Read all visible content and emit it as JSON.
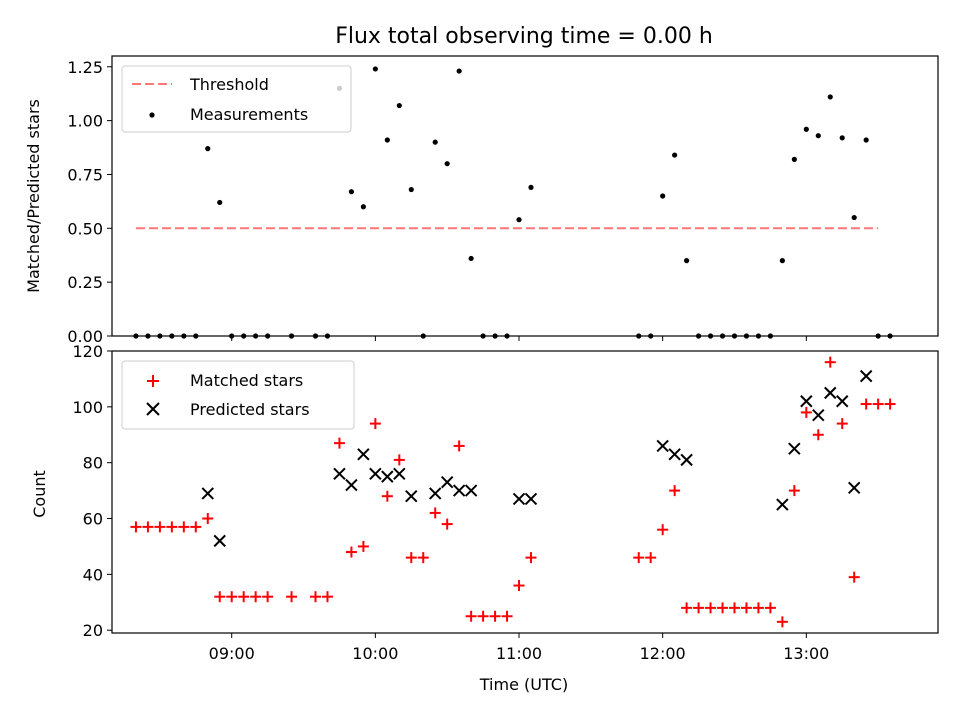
{
  "chart_data": [
    {
      "type": "scatter",
      "title": "Flux total observing time = 0.00 h",
      "xlabel": "",
      "ylabel": "Matched/Predicted stars",
      "ylim": [
        0,
        1.3
      ],
      "xlim": [
        "08:10",
        "13:55"
      ],
      "yticks": [
        "0.00",
        "0.25",
        "0.50",
        "0.75",
        "1.00",
        "1.25"
      ],
      "xticks": [
        "09:00",
        "10:00",
        "11:00",
        "12:00",
        "13:00"
      ],
      "grid": false,
      "legend_position": "top-left",
      "legend": [
        "Threshold",
        "Measurements"
      ],
      "threshold": {
        "name": "Threshold",
        "y": 0.5,
        "x_range": [
          "08:20",
          "13:30"
        ],
        "color": "#ff7777",
        "style": "dashed"
      },
      "series": [
        {
          "name": "Measurements",
          "color": "#000000",
          "marker": "dot",
          "points": [
            [
              "08:20",
              0
            ],
            [
              "08:25",
              0
            ],
            [
              "08:30",
              0
            ],
            [
              "08:35",
              0
            ],
            [
              "08:40",
              0
            ],
            [
              "08:45",
              0
            ],
            [
              "08:50",
              0.87
            ],
            [
              "08:55",
              0.62
            ],
            [
              "09:00",
              0
            ],
            [
              "09:05",
              0
            ],
            [
              "09:10",
              0
            ],
            [
              "09:15",
              0
            ],
            [
              "09:25",
              0
            ],
            [
              "09:35",
              0
            ],
            [
              "09:40",
              0
            ],
            [
              "09:45",
              1.15
            ],
            [
              "09:50",
              0.67
            ],
            [
              "09:55",
              0.6
            ],
            [
              "10:00",
              1.24
            ],
            [
              "10:05",
              0.91
            ],
            [
              "10:10",
              1.07
            ],
            [
              "10:15",
              0.68
            ],
            [
              "10:20",
              0
            ],
            [
              "10:25",
              0.9
            ],
            [
              "10:30",
              0.8
            ],
            [
              "10:35",
              1.23
            ],
            [
              "10:40",
              0.36
            ],
            [
              "10:45",
              0
            ],
            [
              "10:50",
              0
            ],
            [
              "10:55",
              0
            ],
            [
              "11:00",
              0.54
            ],
            [
              "11:05",
              0.69
            ],
            [
              "11:50",
              0
            ],
            [
              "11:55",
              0
            ],
            [
              "12:00",
              0.65
            ],
            [
              "12:05",
              0.84
            ],
            [
              "12:10",
              0.35
            ],
            [
              "12:15",
              0
            ],
            [
              "12:20",
              0
            ],
            [
              "12:25",
              0
            ],
            [
              "12:30",
              0
            ],
            [
              "12:35",
              0
            ],
            [
              "12:40",
              0
            ],
            [
              "12:45",
              0
            ],
            [
              "12:50",
              0.35
            ],
            [
              "12:55",
              0.82
            ],
            [
              "13:00",
              0.96
            ],
            [
              "13:05",
              0.93
            ],
            [
              "13:10",
              1.11
            ],
            [
              "13:15",
              0.92
            ],
            [
              "13:20",
              0.55
            ],
            [
              "13:25",
              0.91
            ],
            [
              "13:30",
              0
            ],
            [
              "13:35",
              0
            ]
          ]
        }
      ]
    },
    {
      "type": "scatter",
      "title": "",
      "xlabel": "Time (UTC)",
      "ylabel": "Count",
      "ylim": [
        19,
        120
      ],
      "xlim": [
        "08:10",
        "13:55"
      ],
      "yticks": [
        "20",
        "40",
        "60",
        "80",
        "100",
        "120"
      ],
      "xticks": [
        "09:00",
        "10:00",
        "11:00",
        "12:00",
        "13:00"
      ],
      "grid": false,
      "legend_position": "top-left",
      "legend": [
        "Matched stars",
        "Predicted stars"
      ],
      "series": [
        {
          "name": "Matched stars",
          "color": "#ff0000",
          "marker": "plus",
          "points": [
            [
              "08:20",
              57
            ],
            [
              "08:25",
              57
            ],
            [
              "08:30",
              57
            ],
            [
              "08:35",
              57
            ],
            [
              "08:40",
              57
            ],
            [
              "08:45",
              57
            ],
            [
              "08:50",
              60
            ],
            [
              "08:55",
              32
            ],
            [
              "09:00",
              32
            ],
            [
              "09:05",
              32
            ],
            [
              "09:10",
              32
            ],
            [
              "09:15",
              32
            ],
            [
              "09:25",
              32
            ],
            [
              "09:35",
              32
            ],
            [
              "09:40",
              32
            ],
            [
              "09:45",
              87
            ],
            [
              "09:50",
              48
            ],
            [
              "09:55",
              50
            ],
            [
              "10:00",
              94
            ],
            [
              "10:05",
              68
            ],
            [
              "10:10",
              81
            ],
            [
              "10:15",
              46
            ],
            [
              "10:20",
              46
            ],
            [
              "10:25",
              62
            ],
            [
              "10:30",
              58
            ],
            [
              "10:35",
              86
            ],
            [
              "10:40",
              25
            ],
            [
              "10:45",
              25
            ],
            [
              "10:50",
              25
            ],
            [
              "10:55",
              25
            ],
            [
              "11:00",
              36
            ],
            [
              "11:05",
              46
            ],
            [
              "11:50",
              46
            ],
            [
              "11:55",
              46
            ],
            [
              "12:00",
              56
            ],
            [
              "12:05",
              70
            ],
            [
              "12:10",
              28
            ],
            [
              "12:15",
              28
            ],
            [
              "12:20",
              28
            ],
            [
              "12:25",
              28
            ],
            [
              "12:30",
              28
            ],
            [
              "12:35",
              28
            ],
            [
              "12:40",
              28
            ],
            [
              "12:45",
              28
            ],
            [
              "12:50",
              23
            ],
            [
              "12:55",
              70
            ],
            [
              "13:00",
              98
            ],
            [
              "13:05",
              90
            ],
            [
              "13:10",
              116
            ],
            [
              "13:15",
              94
            ],
            [
              "13:20",
              39
            ],
            [
              "13:25",
              101
            ],
            [
              "13:30",
              101
            ],
            [
              "13:35",
              101
            ]
          ]
        },
        {
          "name": "Predicted stars",
          "color": "#000000",
          "marker": "x",
          "points": [
            [
              "08:50",
              69
            ],
            [
              "08:55",
              52
            ],
            [
              "09:45",
              76
            ],
            [
              "09:50",
              72
            ],
            [
              "09:55",
              83
            ],
            [
              "10:00",
              76
            ],
            [
              "10:05",
              75
            ],
            [
              "10:10",
              76
            ],
            [
              "10:15",
              68
            ],
            [
              "10:25",
              69
            ],
            [
              "10:30",
              73
            ],
            [
              "10:35",
              70
            ],
            [
              "10:40",
              70
            ],
            [
              "11:00",
              67
            ],
            [
              "11:05",
              67
            ],
            [
              "12:00",
              86
            ],
            [
              "12:05",
              83
            ],
            [
              "12:10",
              81
            ],
            [
              "12:50",
              65
            ],
            [
              "12:55",
              85
            ],
            [
              "13:00",
              102
            ],
            [
              "13:05",
              97
            ],
            [
              "13:10",
              105
            ],
            [
              "13:15",
              102
            ],
            [
              "13:20",
              71
            ],
            [
              "13:25",
              111
            ]
          ]
        }
      ]
    }
  ]
}
